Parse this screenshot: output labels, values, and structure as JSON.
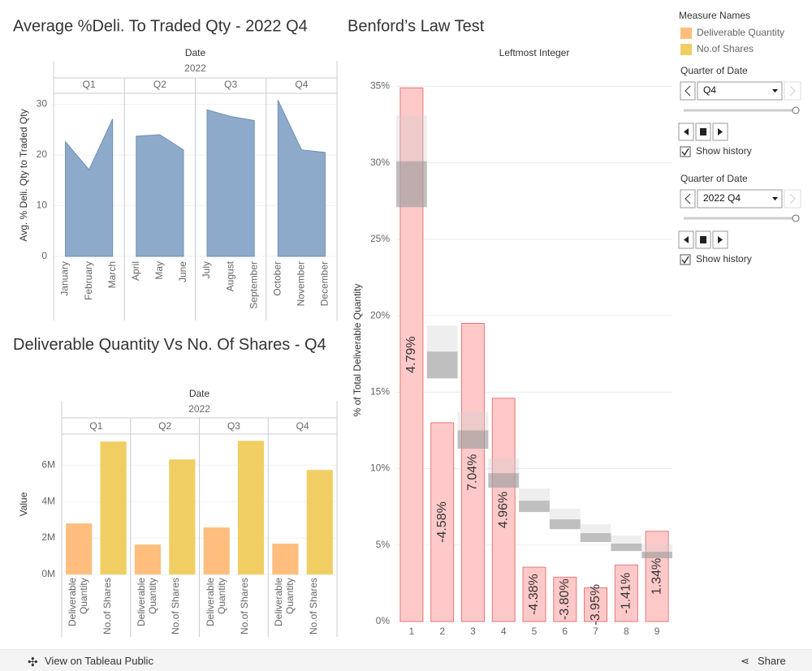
{
  "chart_data": [
    {
      "type": "area",
      "title": "Average %Deli. To Traded Qty - 2022 Q4",
      "x_header": "Date",
      "year": "2022",
      "y_label": "Avg. % Deli. Qty to Traded Qty",
      "color": "#8eaacb",
      "panels": [
        {
          "label": "Q1",
          "categories": [
            "January",
            "February",
            "March"
          ],
          "values": [
            22.6,
            17.1,
            27.1
          ]
        },
        {
          "label": "Q2",
          "categories": [
            "April",
            "May",
            "June"
          ],
          "values": [
            23.7,
            24.0,
            21.0
          ]
        },
        {
          "label": "Q3",
          "categories": [
            "July",
            "August",
            "September"
          ],
          "values": [
            28.9,
            27.6,
            26.8
          ]
        },
        {
          "label": "Q4",
          "categories": [
            "October",
            "November",
            "December"
          ],
          "values": [
            30.8,
            21.0,
            20.5
          ]
        }
      ],
      "ylim": [
        0,
        32
      ],
      "yticks": [
        0,
        10,
        20,
        30
      ]
    },
    {
      "type": "bar",
      "title": "Deliverable Quantity Vs No. Of Shares - Q4",
      "x_header": "Date",
      "year": "2022",
      "y_label": "Value",
      "legend_title": "Measure Names",
      "quarters": [
        "Q1",
        "Q2",
        "Q3",
        "Q4"
      ],
      "series": [
        {
          "name": "Deliverable Quantity",
          "color": "#ffbe7d",
          "values": [
            2800000,
            1640000,
            2580000,
            1690000
          ]
        },
        {
          "name": "No.of Shares",
          "color": "#f1ce63",
          "values": [
            7290000,
            6310000,
            7330000,
            5730000
          ]
        }
      ],
      "ylim": [
        0,
        7700000
      ],
      "yticks": [
        {
          "value": 0,
          "label": "0M"
        },
        {
          "value": 2000000,
          "label": "2M"
        },
        {
          "value": 4000000,
          "label": "4M"
        },
        {
          "value": 6000000,
          "label": "6M"
        }
      ]
    },
    {
      "type": "bar",
      "title": "Benford’s Law Test",
      "x_label": "Leftmost Integer",
      "y_label": "% of Total Deliverable Quantity",
      "categories": [
        "1",
        "2",
        "3",
        "4",
        "5",
        "6",
        "7",
        "8",
        "9"
      ],
      "values": [
        34.9,
        13.0,
        19.5,
        14.6,
        3.55,
        2.9,
        2.2,
        3.7,
        5.9
      ],
      "bar_labels": [
        "4.79%",
        "-4.58%",
        "7.04%",
        "4.96%",
        "-4.38%",
        "-3.80%",
        "-3.95%",
        "-1.41%",
        "1.34%"
      ],
      "color": "#ffc9c9",
      "band_lower": [
        27.1,
        15.9,
        11.3,
        8.75,
        7.16,
        6.04,
        5.2,
        4.61,
        4.14
      ],
      "band_expected": [
        30.1,
        17.65,
        12.5,
        9.7,
        7.9,
        6.68,
        5.78,
        5.09,
        4.56
      ],
      "band_upper": [
        33.1,
        19.35,
        13.7,
        10.66,
        8.7,
        7.37,
        6.36,
        5.62,
        5.0
      ],
      "ylim": [
        0,
        35.5
      ],
      "grid": true,
      "yticks": [
        {
          "value": 0,
          "label": "0%"
        },
        {
          "value": 5,
          "label": "5%"
        },
        {
          "value": 10,
          "label": "10%"
        },
        {
          "value": 15,
          "label": "15%"
        },
        {
          "value": 20,
          "label": "20%"
        },
        {
          "value": 25,
          "label": "25%"
        },
        {
          "value": 30,
          "label": "30%"
        },
        {
          "value": 35,
          "label": "35%"
        }
      ]
    }
  ],
  "filters": [
    {
      "title": "Quarter of Date",
      "selection": "Q4",
      "checkbox": "Show history"
    },
    {
      "title": "Quarter of Date",
      "selection": "2022 Q4",
      "checkbox": "Show history"
    }
  ],
  "footer": {
    "view_link": "View on Tableau Public",
    "share": "Share"
  }
}
